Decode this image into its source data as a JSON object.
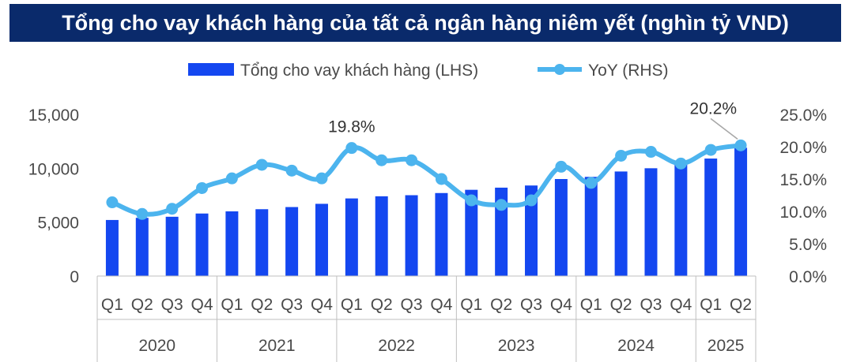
{
  "title": "Tổng cho vay khách hàng của tất cả ngân hàng niêm yết (nghìn tỷ VND)",
  "colors": {
    "banner": "#0a2a6b",
    "bar": "#1447f0",
    "line": "#4cb4ee",
    "axis": "#bfbfbf"
  },
  "chart_data": {
    "type": "bar",
    "title": "Tổng cho vay khách hàng của tất cả ngân hàng niêm yết (nghìn tỷ VND)",
    "legend_position": "top",
    "categories": [
      "Q1",
      "Q2",
      "Q3",
      "Q4",
      "Q1",
      "Q2",
      "Q3",
      "Q4",
      "Q1",
      "Q2",
      "Q3",
      "Q4",
      "Q1",
      "Q2",
      "Q3",
      "Q4",
      "Q1",
      "Q2",
      "Q3",
      "Q4",
      "Q1",
      "Q2"
    ],
    "groups": [
      {
        "label": "2020",
        "count": 4
      },
      {
        "label": "2021",
        "count": 4
      },
      {
        "label": "2022",
        "count": 4
      },
      {
        "label": "2023",
        "count": 4
      },
      {
        "label": "2024",
        "count": 4
      },
      {
        "label": "2025",
        "count": 2
      }
    ],
    "series": [
      {
        "name": "Tổng cho vay khách hàng (LHS)",
        "type": "bar",
        "axis": "left",
        "values": [
          5200,
          5400,
          5500,
          5800,
          6000,
          6200,
          6400,
          6700,
          7200,
          7400,
          7500,
          7700,
          8000,
          8200,
          8400,
          9000,
          9200,
          9700,
          10000,
          10400,
          10900,
          11900
        ]
      },
      {
        "name": "YoY (RHS)",
        "type": "line",
        "axis": "right",
        "values": [
          11.4,
          9.6,
          10.4,
          13.6,
          15.1,
          17.2,
          16.3,
          15.1,
          19.8,
          17.9,
          17.9,
          15.0,
          11.7,
          11.0,
          11.7,
          16.9,
          14.4,
          18.6,
          19.2,
          17.4,
          19.5,
          20.2
        ]
      }
    ],
    "y_left": {
      "ylim": [
        0,
        15000
      ],
      "ticks": [
        "0",
        "5,000",
        "10,000",
        "15,000"
      ]
    },
    "y_right": {
      "ylim": [
        0,
        25
      ],
      "ticks": [
        "0.0%",
        "5.0%",
        "10.0%",
        "15.0%",
        "20.0%",
        "25.0%"
      ]
    },
    "annotations": [
      {
        "text": "19.8%",
        "index": 8
      },
      {
        "text": "20.2%",
        "index": 21
      }
    ]
  }
}
